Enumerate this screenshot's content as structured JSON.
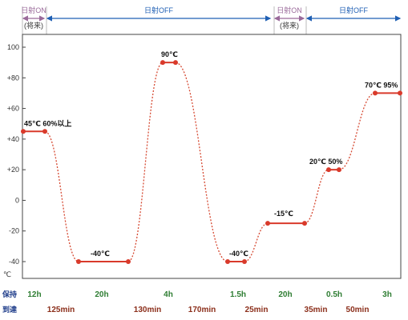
{
  "colors": {
    "plot_border": "#444444",
    "hold_line": "#d93a2b",
    "ramp_line": "#d64a33",
    "marker": "#d93a2b",
    "sun_on": "#9a6a9a",
    "sun_off": "#1f5fb4",
    "hold_text": "#2e7d32",
    "ramp_text": "#8b2e1a",
    "row_title": "#1f3d8a"
  },
  "chart_data": {
    "type": "line",
    "title": "",
    "ylabel": "℃",
    "ylim": [
      -45,
      105
    ],
    "yticks": [
      -40,
      -20,
      0,
      20,
      40,
      60,
      80,
      100
    ],
    "ytick_labels": [
      "-40",
      "-20",
      "0",
      "+20",
      "+40",
      "+60",
      "+80",
      "100"
    ],
    "grid": false,
    "legend": "none",
    "holds": [
      {
        "y": 45,
        "label": "45℃ 60%以上"
      },
      {
        "y": -40,
        "label": "-40℃"
      },
      {
        "y": 90,
        "label": "90℃"
      },
      {
        "y": -40,
        "label": "-40℃"
      },
      {
        "y": -15,
        "label": "-15℃"
      },
      {
        "y": 20,
        "label": "20℃ 50%"
      },
      {
        "y": 70,
        "label": "70℃ 95%"
      }
    ],
    "ramps": [
      {
        "from": 45,
        "to": -40
      },
      {
        "from": -40,
        "to": 90
      },
      {
        "from": 90,
        "to": -40
      },
      {
        "from": -40,
        "to": -15
      },
      {
        "from": -15,
        "to": 20
      },
      {
        "from": 20,
        "to": 70
      }
    ],
    "sun_bands": [
      {
        "label": "日射ON",
        "sub": "(将来)",
        "state": "on"
      },
      {
        "label": "日射OFF",
        "sub": "",
        "state": "off"
      },
      {
        "label": "日射ON",
        "sub": "(将来)",
        "state": "on"
      },
      {
        "label": "日射OFF",
        "sub": "",
        "state": "off"
      }
    ],
    "hold_row_title": "保持",
    "ramp_row_title": "到達",
    "hold_times": [
      "12h",
      "20h",
      "4h",
      "1.5h",
      "20h",
      "0.5h",
      "3h"
    ],
    "ramp_times": [
      "125min",
      "130min",
      "170min",
      "25min",
      "35min",
      "50min"
    ]
  }
}
